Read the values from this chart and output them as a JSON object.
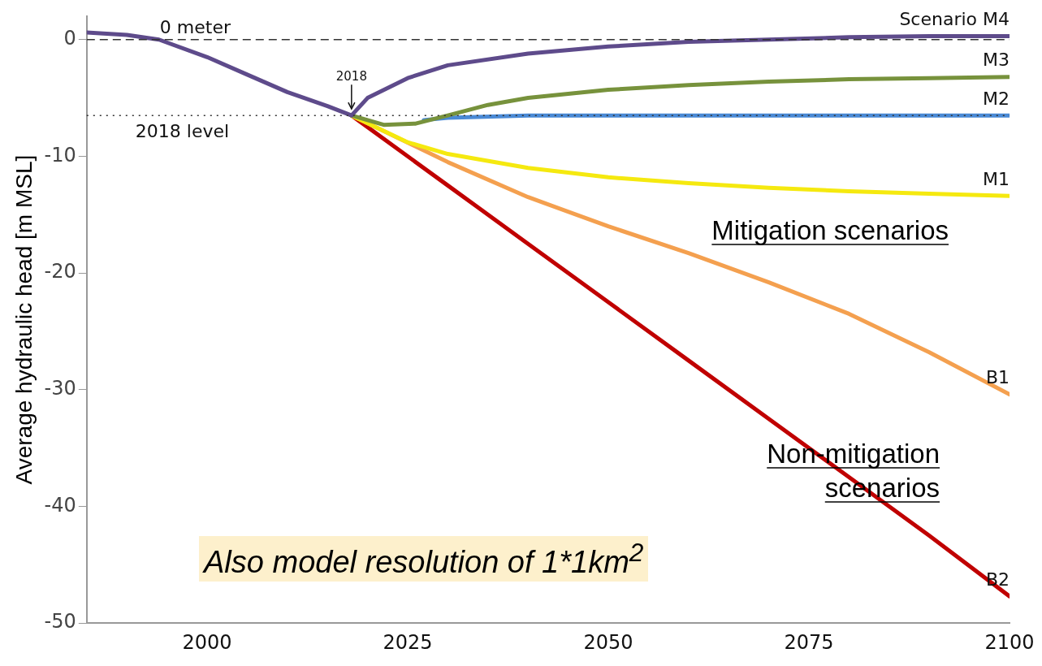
{
  "chart_data": {
    "type": "line",
    "ylabel": "Average hydraulic head [m MSL]",
    "xlim": [
      1985,
      2100
    ],
    "xticks": [
      2000,
      2025,
      2050,
      2075,
      2100
    ],
    "ylim": [
      -50,
      2
    ],
    "yticks": [
      -50,
      -40,
      -30,
      -20,
      -10,
      0
    ],
    "grid": false,
    "legend": false,
    "marker": "none",
    "line_style": "solid",
    "series": [
      {
        "name": "Scenario M4",
        "color": "#5e4b8b",
        "x": [
          1985,
          1990,
          1994,
          2000,
          2005,
          2010,
          2015,
          2018,
          2020,
          2025,
          2030,
          2040,
          2050,
          2060,
          2070,
          2080,
          2090,
          2100
        ],
        "values": [
          0.6,
          0.4,
          0,
          -1.5,
          -3,
          -4.5,
          -5.7,
          -6.5,
          -5,
          -3.3,
          -2.2,
          -1.2,
          -0.6,
          -0.2,
          0,
          0.2,
          0.3,
          0.3
        ]
      },
      {
        "name": "M3",
        "color": "#77923c",
        "x": [
          2018,
          2022,
          2026,
          2030,
          2035,
          2040,
          2050,
          2060,
          2070,
          2080,
          2090,
          2100
        ],
        "values": [
          -6.5,
          -7.3,
          -7.2,
          -6.5,
          -5.6,
          -5,
          -4.3,
          -3.9,
          -3.6,
          -3.4,
          -3.3,
          -3.2
        ]
      },
      {
        "name": "M2",
        "color": "#4a8ad6",
        "x": [
          2027,
          2030,
          2040,
          2050,
          2060,
          2070,
          2080,
          2090,
          2100
        ],
        "values": [
          -6.9,
          -6.7,
          -6.5,
          -6.5,
          -6.5,
          -6.5,
          -6.5,
          -6.5,
          -6.5
        ]
      },
      {
        "name": "M1",
        "color": "#f5e90f",
        "x": [
          2018,
          2025,
          2030,
          2040,
          2050,
          2060,
          2070,
          2080,
          2090,
          2100
        ],
        "values": [
          -6.5,
          -8.8,
          -9.8,
          -11,
          -11.8,
          -12.3,
          -12.7,
          -13,
          -13.2,
          -13.4
        ]
      },
      {
        "name": "B1",
        "color": "#f4a04f",
        "x": [
          2018,
          2030,
          2040,
          2050,
          2060,
          2070,
          2080,
          2090,
          2100
        ],
        "values": [
          -6.5,
          -10.5,
          -13.5,
          -16,
          -18.3,
          -20.8,
          -23.5,
          -26.8,
          -30.4
        ]
      },
      {
        "name": "B2",
        "color": "#c00000",
        "x": [
          2018,
          2030,
          2040,
          2050,
          2060,
          2070,
          2080,
          2090,
          2100
        ],
        "values": [
          -6.5,
          -12.5,
          -17.5,
          -22.5,
          -27.5,
          -32.5,
          -37.5,
          -42.5,
          -47.7
        ]
      }
    ],
    "ref_lines": [
      {
        "axis": "y",
        "value": 0,
        "label": "0 meter",
        "line_style": "dashed",
        "color": "#333333"
      },
      {
        "axis": "y",
        "value": -6.5,
        "label": "2018 level",
        "line_style": "dotted",
        "color": "#333333"
      }
    ],
    "annotations": [
      {
        "text": "2018",
        "x": 2018,
        "y": -6.5
      },
      "Mitigation scenarios",
      "Non-mitigation scenarios",
      "Also model resolution of 1*1km$^{2}$"
    ]
  }
}
